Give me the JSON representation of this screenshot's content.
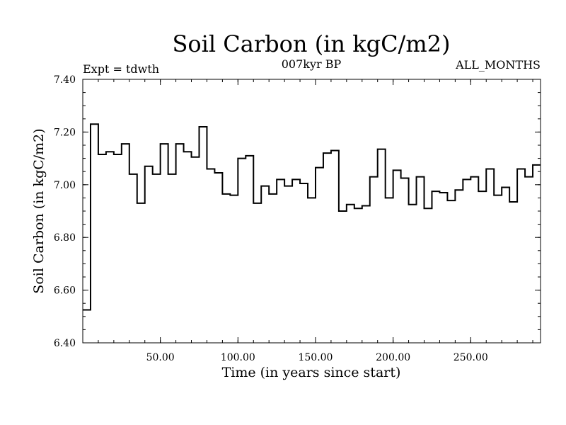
{
  "chart_data": {
    "type": "line",
    "style": "step",
    "title": "Soil Carbon (in kgC/m2)",
    "subtitle_center": "007kyr BP",
    "subtitle_left": "Expt = tdwth",
    "subtitle_right": "ALL_MONTHS",
    "xlabel": "Time (in years since start)",
    "ylabel": "Soil Carbon (in kgC/m2)",
    "xlim": [
      0,
      295
    ],
    "ylim": [
      6.4,
      7.4
    ],
    "xticks": [
      50,
      100,
      150,
      200,
      250
    ],
    "xtick_labels": [
      "50.00",
      "100.00",
      "150.00",
      "200.00",
      "250.00"
    ],
    "yticks": [
      6.4,
      6.6,
      6.8,
      7.0,
      7.2,
      7.4
    ],
    "ytick_labels": [
      "6.40",
      "6.60",
      "6.80",
      "7.00",
      "7.20",
      "7.40"
    ],
    "step_width": 5,
    "series": [
      {
        "name": "soil carbon",
        "x": [
          0,
          5,
          10,
          15,
          20,
          25,
          30,
          35,
          40,
          45,
          50,
          55,
          60,
          65,
          70,
          75,
          80,
          85,
          90,
          95,
          100,
          105,
          110,
          115,
          120,
          125,
          130,
          135,
          140,
          145,
          150,
          155,
          160,
          165,
          170,
          175,
          180,
          185,
          190,
          195,
          200,
          205,
          210,
          215,
          220,
          225,
          230,
          235,
          240,
          245,
          250,
          255,
          260,
          265,
          270,
          275,
          280,
          285,
          290
        ],
        "values": [
          6.525,
          7.23,
          7.115,
          7.125,
          7.115,
          7.155,
          7.04,
          6.93,
          7.07,
          7.04,
          7.155,
          7.04,
          7.155,
          7.125,
          7.105,
          7.22,
          7.06,
          7.045,
          6.965,
          6.96,
          7.1,
          7.11,
          6.93,
          6.995,
          6.965,
          7.02,
          6.995,
          7.02,
          7.005,
          6.95,
          7.065,
          7.12,
          7.13,
          6.9,
          6.925,
          6.91,
          6.92,
          7.03,
          7.135,
          6.95,
          7.055,
          7.025,
          6.925,
          7.03,
          6.91,
          6.975,
          6.97,
          6.94,
          6.98,
          7.02,
          7.03,
          6.975,
          7.06,
          6.96,
          6.99,
          6.935,
          7.06,
          7.03,
          7.075
        ]
      }
    ]
  }
}
